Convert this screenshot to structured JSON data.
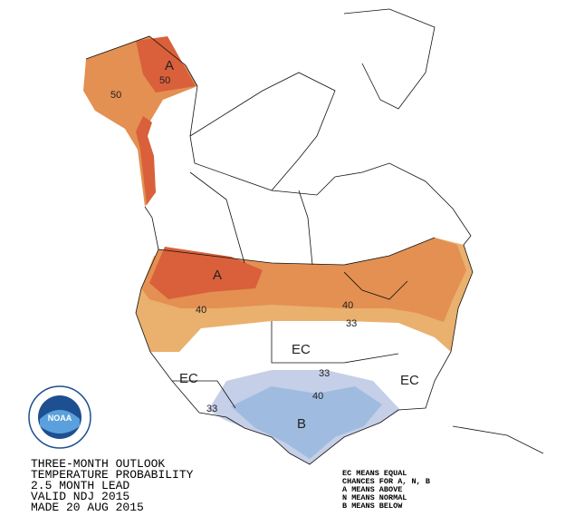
{
  "title_block": {
    "lines": [
      "THREE-MONTH OUTLOOK",
      "TEMPERATURE PROBABILITY",
      "2.5 MONTH LEAD",
      "VALID NDJ 2015",
      "MADE 20 AUG 2015"
    ]
  },
  "legend": {
    "lines": [
      "EC MEANS EQUAL",
      "CHANCES FOR A, N, B",
      "A MEANS ABOVE",
      "N MEANS NORMAL",
      "B MEANS BELOW"
    ]
  },
  "logo": {
    "text": "NOAA"
  },
  "map_labels": {
    "alaska_a": "A",
    "alaska_50a": "50",
    "alaska_50b": "50",
    "west_a": "A",
    "contour_40a": "40",
    "contour_40b": "40",
    "contour_33a": "33",
    "ec_center": "EC",
    "ec_southwest": "EC",
    "ec_southeast": "EC",
    "contour_33b": "33",
    "contour_33c": "33",
    "contour_40c": "40",
    "south_b": "B"
  }
}
